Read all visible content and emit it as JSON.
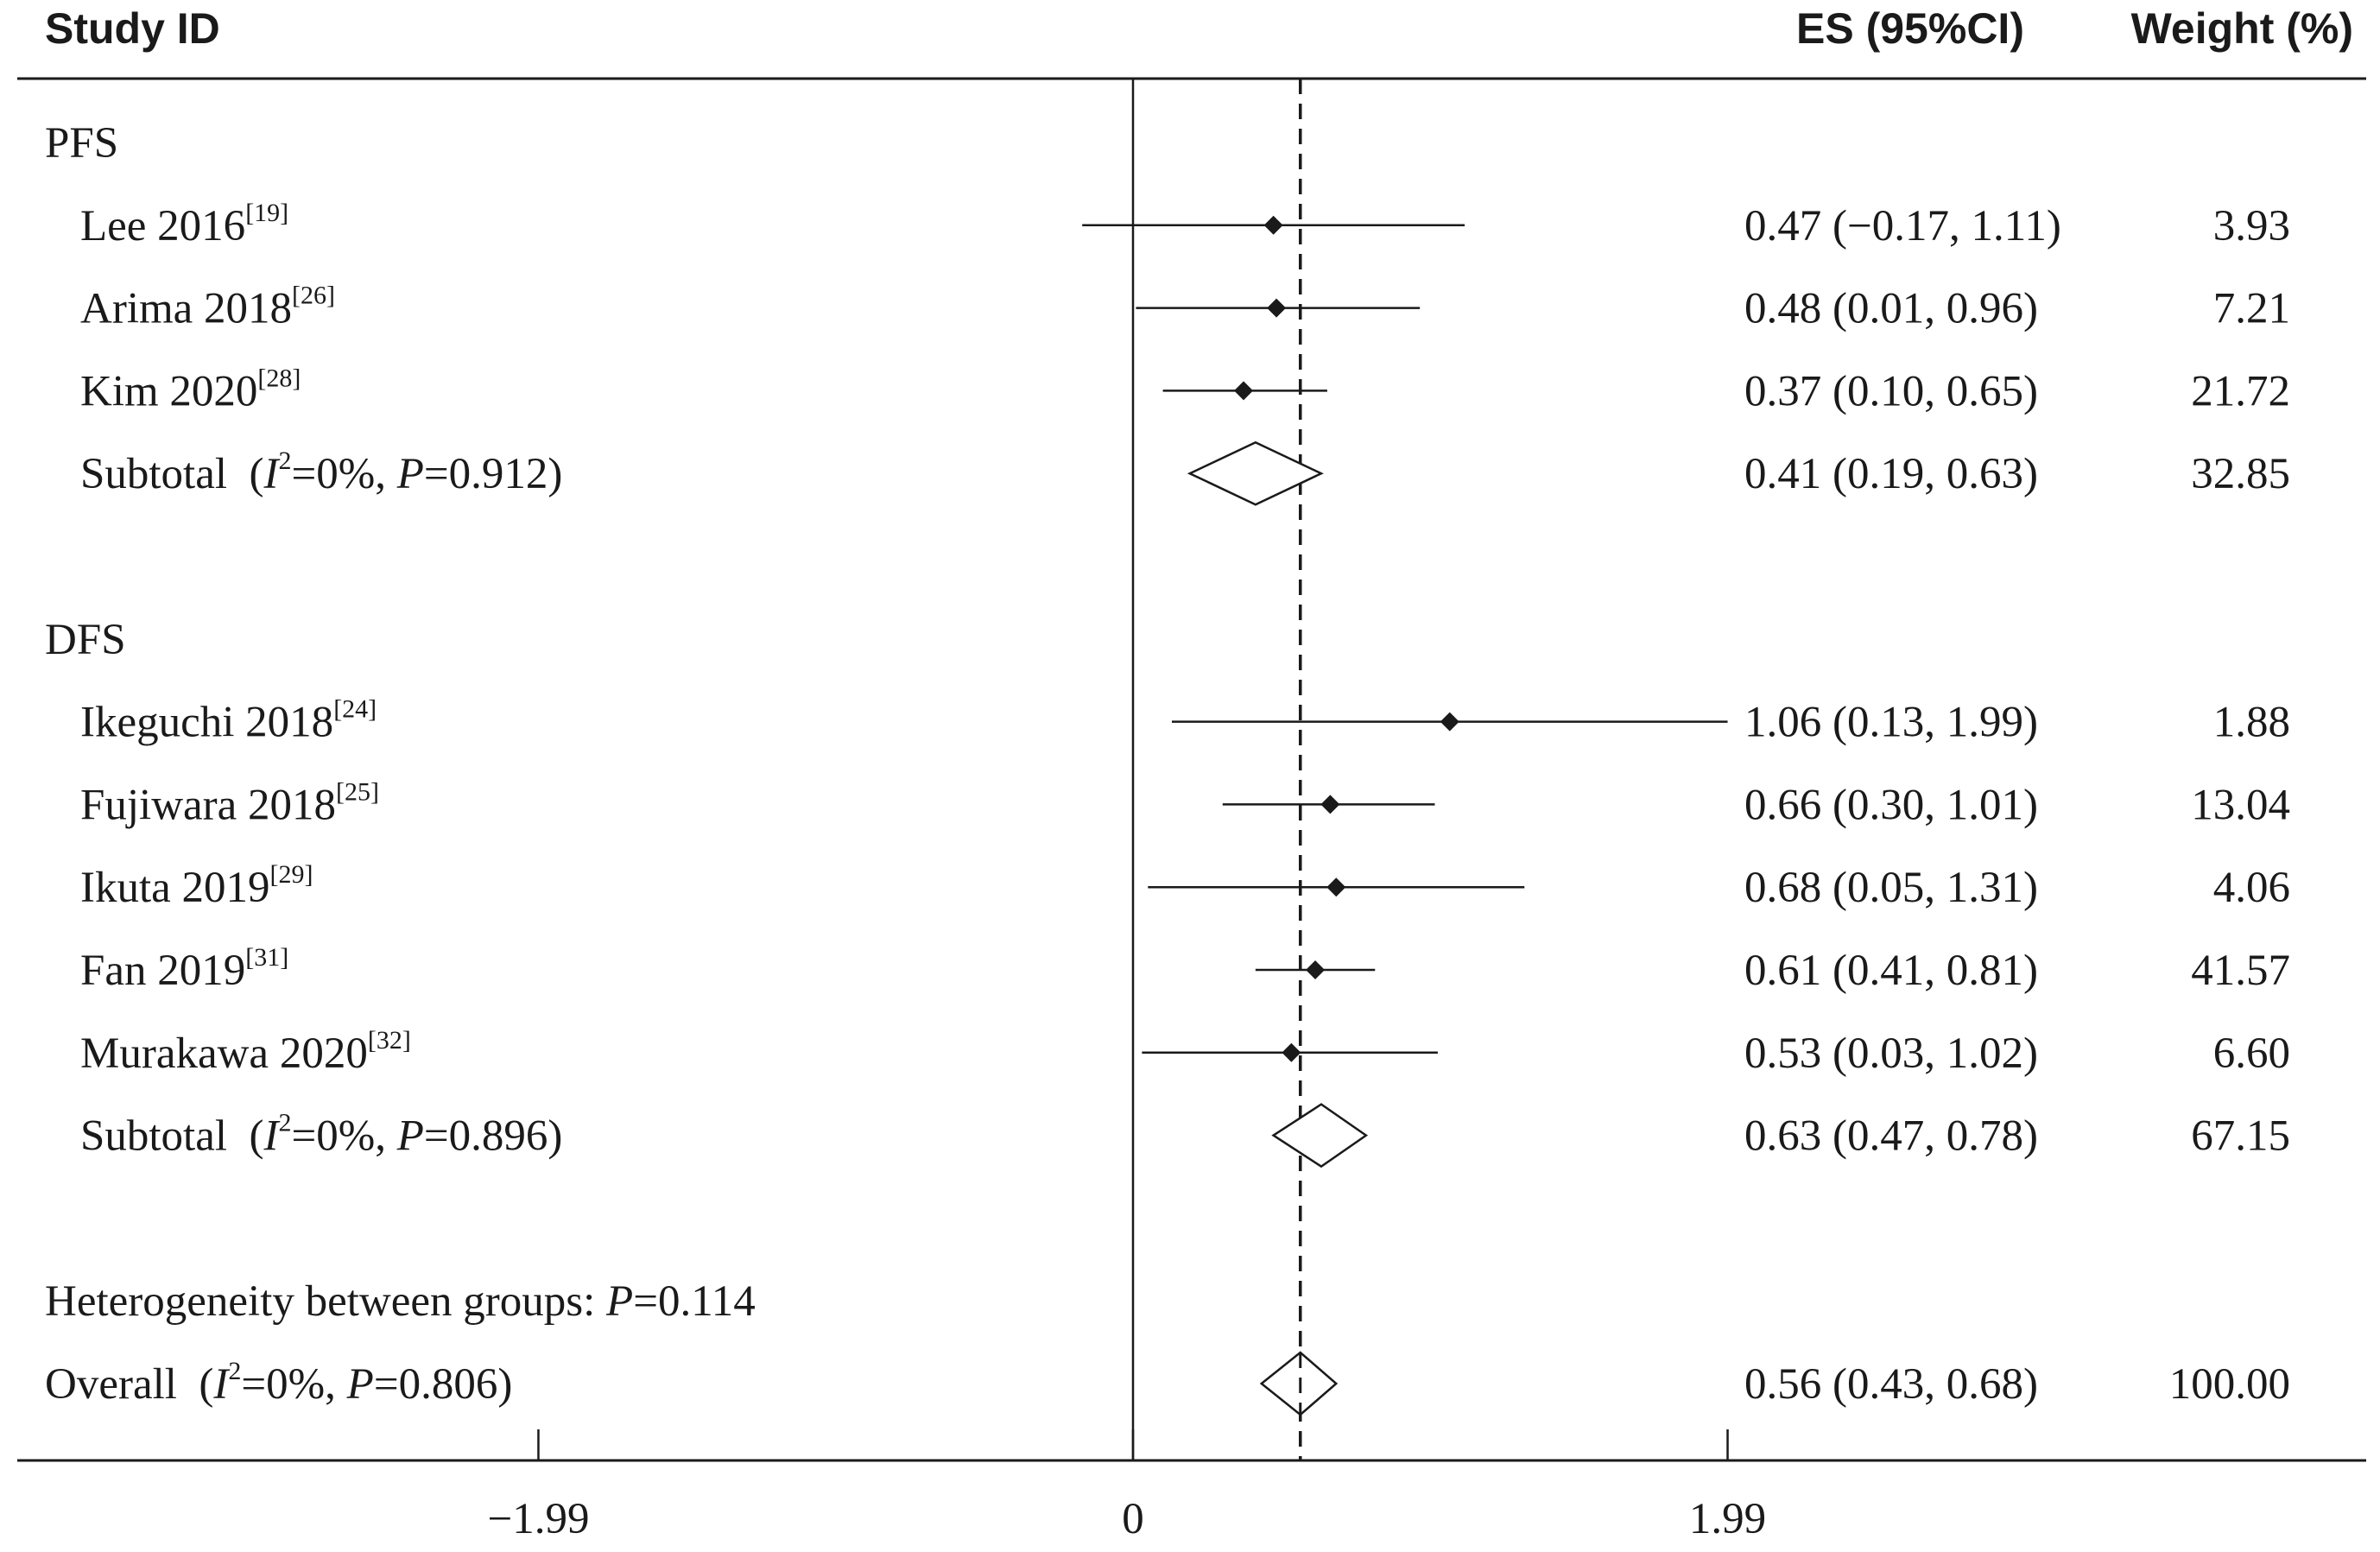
{
  "header": {
    "study_label": "Study ID",
    "es_label": "ES (95%CI)",
    "weight_label": "Weight (%)"
  },
  "chart_data": {
    "type": "forest",
    "xticks": [
      -1.99,
      0,
      1.99
    ],
    "xtick_labels": [
      "−1.99",
      "0",
      "1.99"
    ],
    "xlim": [
      -3.8,
      4.1
    ],
    "null_line": 0,
    "overall_line": 0.56,
    "rows": [
      {
        "kind": "group",
        "label": "PFS"
      },
      {
        "kind": "study",
        "name": "Lee 2016",
        "ref": "[19]",
        "es": 0.47,
        "lo": -0.17,
        "hi": 1.11,
        "es_text": "0.47 (−0.17, 1.11)",
        "weight": "3.93"
      },
      {
        "kind": "study",
        "name": "Arima 2018",
        "ref": "[26]",
        "es": 0.48,
        "lo": 0.01,
        "hi": 0.96,
        "es_text": "0.48 (0.01, 0.96)",
        "weight": "7.21"
      },
      {
        "kind": "study",
        "name": "Kim 2020",
        "ref": "[28]",
        "es": 0.37,
        "lo": 0.1,
        "hi": 0.65,
        "es_text": "0.37 (0.10, 0.65)",
        "weight": "21.72"
      },
      {
        "kind": "subtotal",
        "name": "Subtotal",
        "i2": "0%",
        "p": "0.912",
        "es": 0.41,
        "lo": 0.19,
        "hi": 0.63,
        "es_text": "0.41 (0.19, 0.63)",
        "weight": "32.85"
      },
      {
        "kind": "spacer"
      },
      {
        "kind": "group",
        "label": "DFS"
      },
      {
        "kind": "study",
        "name": "Ikeguchi 2018",
        "ref": "[24]",
        "es": 1.06,
        "lo": 0.13,
        "hi": 1.99,
        "es_text": "1.06 (0.13, 1.99)",
        "weight": "1.88"
      },
      {
        "kind": "study",
        "name": "Fujiwara 2018",
        "ref": "[25]",
        "es": 0.66,
        "lo": 0.3,
        "hi": 1.01,
        "es_text": "0.66 (0.30, 1.01)",
        "weight": "13.04"
      },
      {
        "kind": "study",
        "name": "Ikuta 2019",
        "ref": "[29]",
        "es": 0.68,
        "lo": 0.05,
        "hi": 1.31,
        "es_text": "0.68 (0.05, 1.31)",
        "weight": "4.06"
      },
      {
        "kind": "study",
        "name": "Fan 2019",
        "ref": "[31]",
        "es": 0.61,
        "lo": 0.41,
        "hi": 0.81,
        "es_text": "0.61 (0.41, 0.81)",
        "weight": "41.57"
      },
      {
        "kind": "study",
        "name": "Murakawa 2020",
        "ref": "[32]",
        "es": 0.53,
        "lo": 0.03,
        "hi": 1.02,
        "es_text": "0.53 (0.03, 1.02)",
        "weight": "6.60"
      },
      {
        "kind": "subtotal",
        "name": "Subtotal",
        "i2": "0%",
        "p": "0.896",
        "es": 0.63,
        "lo": 0.47,
        "hi": 0.78,
        "es_text": "0.63 (0.47, 0.78)",
        "weight": "67.15"
      },
      {
        "kind": "spacer"
      },
      {
        "kind": "heterogeneity",
        "text": "Heterogeneity between groups: ",
        "p": "0.114"
      },
      {
        "kind": "overall",
        "name": "Overall",
        "i2": "0%",
        "p": "0.806",
        "es": 0.56,
        "lo": 0.43,
        "hi": 0.68,
        "es_text": "0.56 (0.43, 0.68)",
        "weight": "100.00"
      }
    ]
  }
}
